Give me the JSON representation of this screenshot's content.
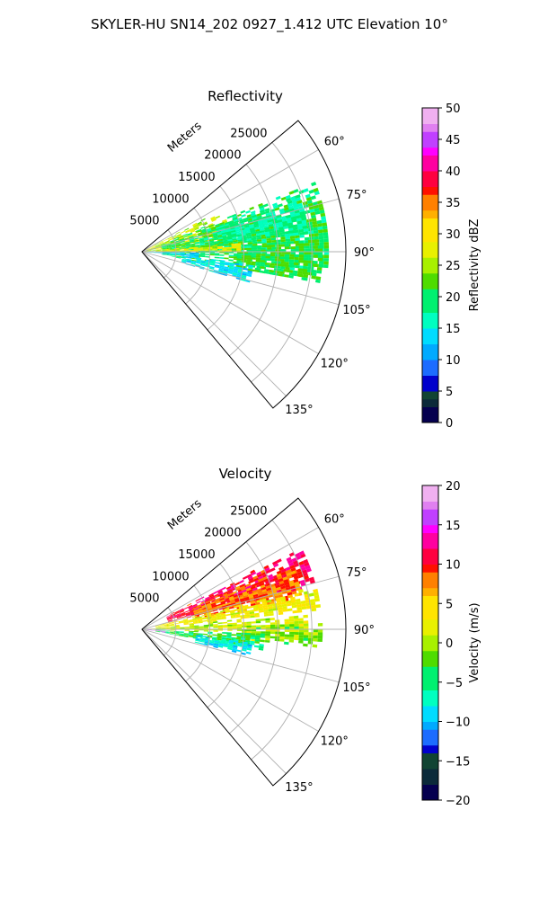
{
  "figure": {
    "suptitle": "SKYLER-HU  SN14_202  0927_1.412 UTC Elevation 10°"
  },
  "chart_data": [
    {
      "type": "heatmap",
      "title": "Reflectivity",
      "projection": "polar-sector",
      "radial_axis_label": "Meters",
      "radial_ticks": [
        5000,
        10000,
        15000,
        20000,
        25000
      ],
      "radial_tick_labels": [
        "5000",
        "10000",
        "15000",
        "20000",
        "25000"
      ],
      "r_range": [
        0,
        30000
      ],
      "azimuth_range_deg": [
        50,
        140
      ],
      "azimuth_ticks": [
        60,
        75,
        90,
        105,
        120,
        135
      ],
      "azimuth_tick_labels": [
        "60°",
        "75°",
        "90°",
        "105°",
        "120°",
        "135°"
      ],
      "grid": true,
      "colorbar": {
        "label": "Reflectivity dBZ",
        "range": [
          0,
          50
        ],
        "ticks": [
          0,
          5,
          10,
          15,
          20,
          25,
          30,
          35,
          40,
          45,
          50
        ],
        "tick_labels": [
          "0",
          "5",
          "10",
          "15",
          "20",
          "25",
          "30",
          "35",
          "40",
          "45",
          "50"
        ],
        "colorscale": [
          [
            0,
            "#05004f"
          ],
          [
            0.04,
            "#0b2a3a"
          ],
          [
            0.08,
            "#114433"
          ],
          [
            0.1,
            "#0000cc"
          ],
          [
            0.14,
            "#1c6cff"
          ],
          [
            0.2,
            "#00aaff"
          ],
          [
            0.24,
            "#00dcff"
          ],
          [
            0.3,
            "#00ffc0"
          ],
          [
            0.36,
            "#00f070"
          ],
          [
            0.42,
            "#4fdc00"
          ],
          [
            0.48,
            "#a8f000"
          ],
          [
            0.52,
            "#e8f000"
          ],
          [
            0.58,
            "#ffe400"
          ],
          [
            0.64,
            "#ffb000"
          ],
          [
            0.68,
            "#ff8000"
          ],
          [
            0.72,
            "#ff1000"
          ],
          [
            0.76,
            "#ff0040"
          ],
          [
            0.8,
            "#ff00a0"
          ],
          [
            0.84,
            "#ff00ff"
          ],
          [
            0.88,
            "#c040ff"
          ],
          [
            0.92,
            "#e080f0"
          ],
          [
            0.96,
            "#f0b0f0"
          ],
          [
            1,
            "#fff0ff"
          ]
        ]
      },
      "echo_regions": [
        {
          "az": [
            62,
            88
          ],
          "r": [
            0,
            13000
          ],
          "value": 26
        },
        {
          "az": [
            68,
            100
          ],
          "r": [
            3000,
            27000
          ],
          "value": 20
        },
        {
          "az": [
            70,
            84
          ],
          "r": [
            12000,
            24000
          ],
          "value": 18
        },
        {
          "az": [
            86,
            100
          ],
          "r": [
            14000,
            26000
          ],
          "value": 21
        },
        {
          "az": [
            84,
            90
          ],
          "r": [
            2000,
            14000
          ],
          "value": 28
        },
        {
          "az": [
            90,
            96
          ],
          "r": [
            0,
            8000
          ],
          "value": 13
        },
        {
          "az": [
            96,
            106
          ],
          "r": [
            6000,
            16000
          ],
          "value": 14
        }
      ]
    },
    {
      "type": "heatmap",
      "title": "Velocity",
      "projection": "polar-sector",
      "radial_axis_label": "Meters",
      "radial_ticks": [
        5000,
        10000,
        15000,
        20000,
        25000
      ],
      "radial_tick_labels": [
        "5000",
        "10000",
        "15000",
        "20000",
        "25000"
      ],
      "r_range": [
        0,
        30000
      ],
      "azimuth_range_deg": [
        50,
        140
      ],
      "azimuth_ticks": [
        60,
        75,
        90,
        105,
        120,
        135
      ],
      "azimuth_tick_labels": [
        "60°",
        "75°",
        "90°",
        "105°",
        "120°",
        "135°"
      ],
      "grid": true,
      "colorbar": {
        "label": "Velocity (m/s)",
        "range": [
          -20,
          20
        ],
        "ticks": [
          -20,
          -15,
          -10,
          -5,
          0,
          5,
          10,
          15,
          20
        ],
        "tick_labels": [
          "−20",
          "−15",
          "−10",
          "−5",
          "0",
          "5",
          "10",
          "15",
          "20"
        ],
        "colorscale": [
          [
            0,
            "#05004f"
          ],
          [
            0.05,
            "#0b2a3a"
          ],
          [
            0.1,
            "#114433"
          ],
          [
            0.14,
            "#0000cc"
          ],
          [
            0.18,
            "#1c6cff"
          ],
          [
            0.22,
            "#00aaff"
          ],
          [
            0.26,
            "#00dcff"
          ],
          [
            0.3,
            "#00ffc0"
          ],
          [
            0.36,
            "#00f070"
          ],
          [
            0.42,
            "#4fdc00"
          ],
          [
            0.48,
            "#a8f000"
          ],
          [
            0.52,
            "#e8f000"
          ],
          [
            0.58,
            "#ffe400"
          ],
          [
            0.64,
            "#ffb000"
          ],
          [
            0.68,
            "#ff8000"
          ],
          [
            0.72,
            "#ff1000"
          ],
          [
            0.76,
            "#ff0040"
          ],
          [
            0.8,
            "#ff00a0"
          ],
          [
            0.84,
            "#ff00ff"
          ],
          [
            0.88,
            "#c040ff"
          ],
          [
            0.92,
            "#e080f0"
          ],
          [
            0.96,
            "#f0b0f0"
          ],
          [
            1,
            "#fff0ff"
          ]
        ]
      },
      "echo_regions": [
        {
          "az": [
            62,
            76
          ],
          "r": [
            4000,
            26000
          ],
          "value": 11
        },
        {
          "az": [
            66,
            80
          ],
          "r": [
            8000,
            24000
          ],
          "value": 8
        },
        {
          "az": [
            76,
            84
          ],
          "r": [
            2000,
            26000
          ],
          "value": 3
        },
        {
          "az": [
            84,
            92
          ],
          "r": [
            0,
            24000
          ],
          "value": 1
        },
        {
          "az": [
            88,
            96
          ],
          "r": [
            14000,
            26000
          ],
          "value": -1
        },
        {
          "az": [
            92,
            100
          ],
          "r": [
            2000,
            18000
          ],
          "value": -4
        },
        {
          "az": [
            96,
            104
          ],
          "r": [
            8000,
            16000
          ],
          "value": -8
        },
        {
          "az": [
            92,
            98
          ],
          "r": [
            0,
            3000
          ],
          "value": 18
        }
      ]
    }
  ]
}
